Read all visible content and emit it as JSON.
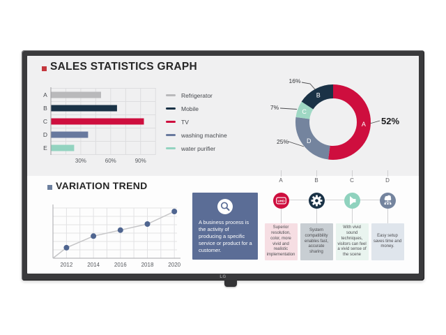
{
  "device": {
    "logo": "LG"
  },
  "colors": {
    "crimson": "#ce0e3e",
    "navy": "#1a3246",
    "slate": "#68799e",
    "mint": "#93d3c0",
    "gray": "#b9b9bb",
    "panel": "#f0f0f1",
    "bezel": "#3a3a3c",
    "textbox_bg": "#5b6d96"
  },
  "sales": {
    "title": "SALES STATISTICS GRAPH"
  },
  "variation": {
    "title": "VARIATION TREND"
  },
  "textbox": {
    "text": "A business process is the activity of producing a specific service or product for a customer."
  },
  "process": {
    "items": [
      {
        "letter": "A",
        "icon": "uhd-badge-icon",
        "icon_label": "UHD",
        "circle_color": "#ce0e3e",
        "card_color": "#f6dee3",
        "text": "Superior resolution, color, more vivid and realistic implementation"
      },
      {
        "letter": "B",
        "icon": "gear-icon",
        "circle_color": "#1a3246",
        "card_color": "#c8ced3",
        "text": "System compatibility enables fast, accurate sharing"
      },
      {
        "letter": "C",
        "icon": "speaker-icon",
        "circle_color": "#8fd2be",
        "card_color": "#e9f4ef",
        "text": "With vivid sound techniques, visitors can feel a vivid sense of the scene"
      },
      {
        "letter": "D",
        "icon": "cloud-network-icon",
        "circle_color": "#74849e",
        "card_color": "#dfe5ec",
        "text": "Easy setup saves time and money."
      }
    ]
  },
  "chart_data": [
    {
      "type": "bar",
      "orientation": "horizontal",
      "title": "SALES STATISTICS GRAPH",
      "categories": [
        "A",
        "B",
        "C",
        "D",
        "E"
      ],
      "values": [
        50,
        66,
        93,
        37,
        23
      ],
      "unit": "%",
      "bar_colors": [
        "#b9b9bb",
        "#1a3246",
        "#ce0e3e",
        "#68799e",
        "#93d3c0"
      ],
      "xticks": [
        "30%",
        "60%",
        "90%"
      ],
      "xlim": [
        0,
        105
      ],
      "grid": true,
      "legend_position": "right",
      "legend": [
        {
          "label": "Refrigerator",
          "color": "#b9b9bb"
        },
        {
          "label": "Mobile",
          "color": "#1a3246"
        },
        {
          "label": "TV",
          "color": "#ce0e3e"
        },
        {
          "label": "washing machine",
          "color": "#68799e"
        },
        {
          "label": "water purifier",
          "color": "#93d3c0"
        }
      ]
    },
    {
      "type": "pie",
      "donut": true,
      "labels": [
        "A",
        "B",
        "C",
        "D"
      ],
      "values": [
        52,
        16,
        7,
        25
      ],
      "value_labels": [
        "52%",
        "16%",
        "7%",
        "25%"
      ],
      "colors": [
        "#ce0e3e",
        "#1a3246",
        "#9fd8c4",
        "#74849e"
      ],
      "clockwise_order_from_top": [
        "A",
        "D",
        "C",
        "B"
      ]
    },
    {
      "type": "line",
      "title": "VARIATION TREND",
      "x": [
        "2012",
        "2014",
        "2016",
        "2018",
        "2020"
      ],
      "values": [
        21,
        44,
        56,
        68,
        93
      ],
      "ylim": [
        0,
        100
      ],
      "grid": true,
      "line_color": "#c5c5c7",
      "point_color": "#4f6590"
    }
  ]
}
